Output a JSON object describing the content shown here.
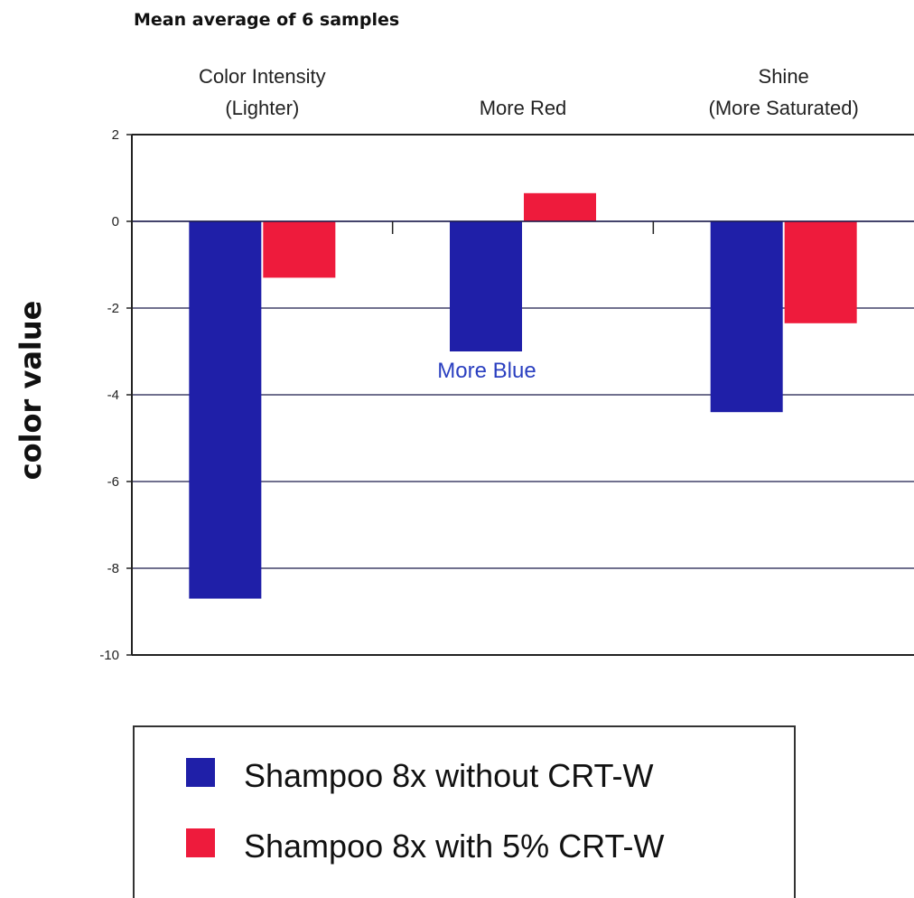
{
  "chart_data": {
    "type": "bar",
    "title": "Mean average of 6 samples",
    "ylabel": "color value",
    "ylim": [
      -10,
      2
    ],
    "yticks": [
      "2",
      "0",
      "-2",
      "-4",
      "-6",
      "-8",
      "-10"
    ],
    "categories": [
      [
        "Color Intensity",
        "(Lighter)"
      ],
      [
        "More Red"
      ],
      [
        "Shine",
        "(More Saturated)"
      ]
    ],
    "series": [
      {
        "name": "Shampoo 8x without CRT-W",
        "color": "#1f1fa8",
        "values": [
          -8.7,
          -3.0,
          -4.4
        ]
      },
      {
        "name": "Shampoo 8x with 5% CRT-W",
        "color": "#ee1b3c",
        "values": [
          -1.3,
          0.65,
          -2.35
        ]
      }
    ],
    "annotations": [
      {
        "text": "More Blue",
        "category": 1,
        "value": -3.6,
        "color": "#2a3fc0"
      }
    ],
    "grid": true,
    "legend": "bottom"
  }
}
